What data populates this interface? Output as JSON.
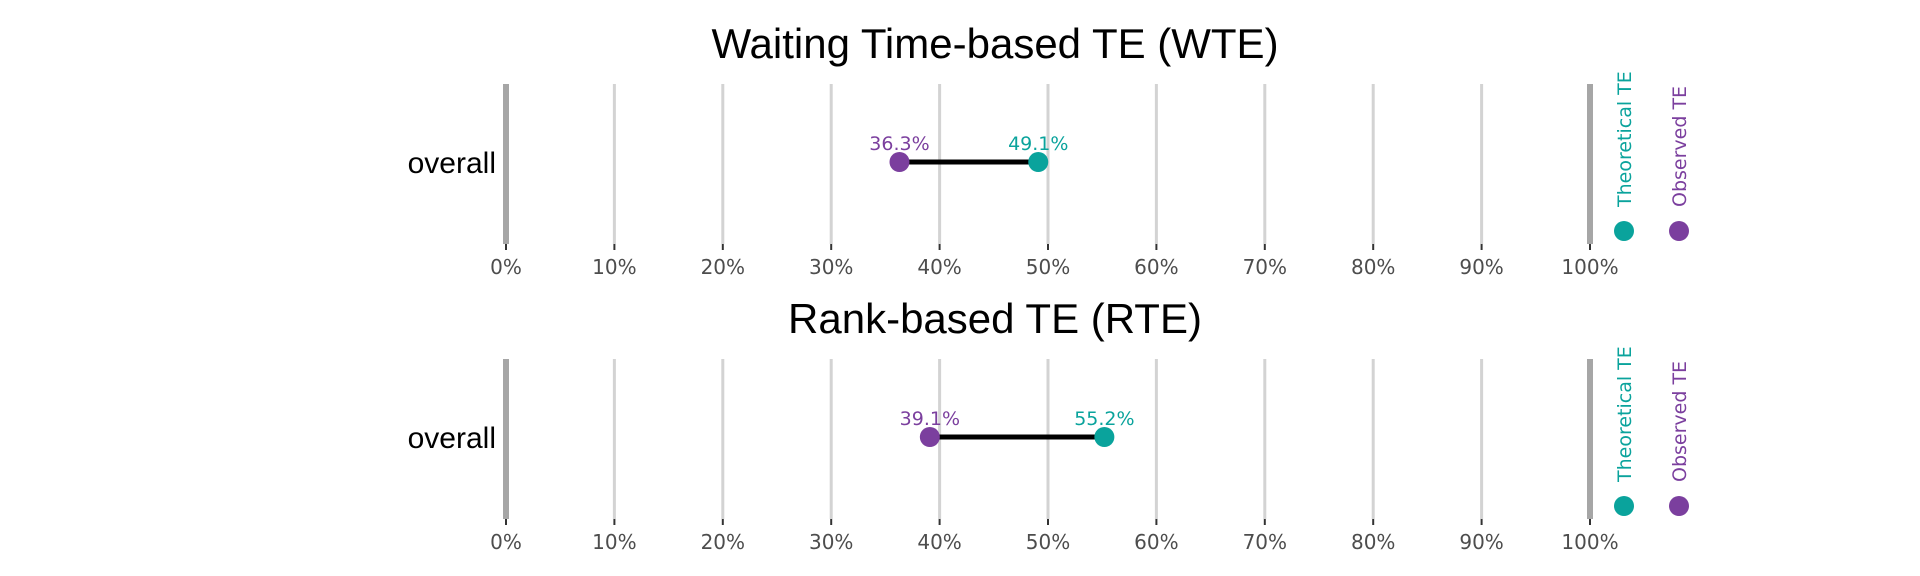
{
  "colors": {
    "theoretical": "#0aa39c",
    "observed": "#7b3f9e",
    "gridline": "#d3d3d3",
    "boundary": "#a6a6a6",
    "segment": "#000000"
  },
  "legend": {
    "theoretical_label": "Theoretical TE",
    "observed_label": "Observed TE"
  },
  "chart_data": [
    {
      "type": "dumbbell",
      "title": "Waiting Time-based TE (WTE)",
      "categories": [
        "overall"
      ],
      "series": [
        {
          "name": "Observed TE",
          "values": [
            36.3
          ],
          "labels": [
            "36.3%"
          ]
        },
        {
          "name": "Theoretical TE",
          "values": [
            49.1
          ],
          "labels": [
            "49.1%"
          ]
        }
      ],
      "xlim": [
        0,
        100
      ],
      "x_ticks": [
        0,
        10,
        20,
        30,
        40,
        50,
        60,
        70,
        80,
        90,
        100
      ],
      "x_tick_labels": [
        "0%",
        "10%",
        "20%",
        "30%",
        "40%",
        "50%",
        "60%",
        "70%",
        "80%",
        "90%",
        "100%"
      ],
      "grid": true,
      "legend_position": "right"
    },
    {
      "type": "dumbbell",
      "title": "Rank-based TE (RTE)",
      "categories": [
        "overall"
      ],
      "series": [
        {
          "name": "Observed TE",
          "values": [
            39.1
          ],
          "labels": [
            "39.1%"
          ]
        },
        {
          "name": "Theoretical TE",
          "values": [
            55.2
          ],
          "labels": [
            "55.2%"
          ]
        }
      ],
      "xlim": [
        0,
        100
      ],
      "x_ticks": [
        0,
        10,
        20,
        30,
        40,
        50,
        60,
        70,
        80,
        90,
        100
      ],
      "x_tick_labels": [
        "0%",
        "10%",
        "20%",
        "30%",
        "40%",
        "50%",
        "60%",
        "70%",
        "80%",
        "90%",
        "100%"
      ],
      "grid": true,
      "legend_position": "right"
    }
  ]
}
